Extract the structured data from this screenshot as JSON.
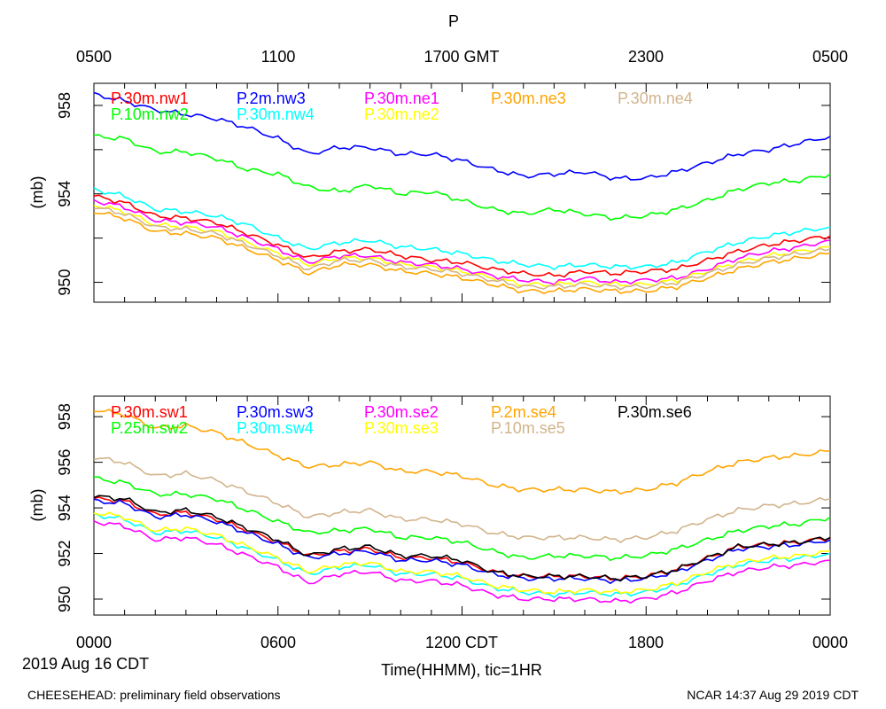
{
  "title": "P",
  "top_axis_labels": [
    "0500",
    "1100",
    "1700 GMT",
    "2300",
    "0500"
  ],
  "bottom_axis_labels": [
    "0000",
    "0600",
    "1200 CDT",
    "1800",
    "0000"
  ],
  "date_label": "2019 Aug 16 CDT",
  "xlabel": "Time(HHMM), tic=1HR",
  "footer_left": "CHEESEHEAD: preliminary field observations",
  "footer_right": "NCAR 14:37 Aug 29 2019 CDT",
  "colors": {
    "red": "#ff0000",
    "blue": "#0000ff",
    "green": "#00ff00",
    "magenta": "#ff00ff",
    "cyan": "#00ffff",
    "orange": "#ffa500",
    "yellow": "#ffff00",
    "tan": "#d2b48c",
    "black": "#000000"
  },
  "chart_data": [
    {
      "type": "line",
      "ylabel": "(mb)",
      "xlim": [
        0,
        24
      ],
      "ylim": [
        949.1,
        959.0
      ],
      "yticks": [
        950,
        952,
        954,
        956,
        958
      ],
      "ytick_labels": [
        "950",
        "954",
        "958"
      ],
      "x": [
        0,
        1,
        2,
        3,
        4,
        5,
        6,
        7,
        8,
        9,
        10,
        11,
        12,
        13,
        14,
        15,
        16,
        17,
        18,
        19,
        20,
        21,
        22,
        23,
        24
      ],
      "series": [
        {
          "name": "P.30m.nw1",
          "color": "red",
          "values": [
            953.9,
            953.6,
            953.0,
            952.9,
            952.7,
            952.2,
            951.7,
            951.1,
            951.4,
            951.5,
            951.2,
            951.0,
            950.9,
            950.6,
            950.4,
            950.3,
            950.5,
            950.4,
            950.5,
            950.6,
            951.0,
            951.4,
            951.7,
            951.9,
            952.1
          ]
        },
        {
          "name": "P.10m.nw2",
          "color": "green",
          "values": [
            956.6,
            956.5,
            955.9,
            955.9,
            955.6,
            955.1,
            954.9,
            954.3,
            954.1,
            954.4,
            954.0,
            954.1,
            953.7,
            953.3,
            953.1,
            953.3,
            953.1,
            952.9,
            953.0,
            953.3,
            953.7,
            954.2,
            954.5,
            954.6,
            954.9
          ]
        },
        {
          "name": "P.2m.nw3",
          "color": "blue",
          "values": [
            958.5,
            958.2,
            957.8,
            957.6,
            957.4,
            957.0,
            956.5,
            955.8,
            956.1,
            956.1,
            955.8,
            955.8,
            955.5,
            955.1,
            954.8,
            954.9,
            955.0,
            954.7,
            954.7,
            955.0,
            955.4,
            955.8,
            956.0,
            956.3,
            956.6
          ]
        },
        {
          "name": "P.30m.nw4",
          "color": "cyan",
          "values": [
            954.2,
            953.9,
            953.3,
            953.2,
            953.0,
            952.6,
            952.0,
            951.5,
            951.8,
            951.9,
            951.6,
            951.5,
            951.3,
            951.0,
            950.8,
            950.7,
            950.8,
            950.7,
            950.7,
            950.9,
            951.4,
            951.8,
            952.1,
            952.3,
            952.5
          ]
        },
        {
          "name": "P.30m.ne1",
          "color": "magenta",
          "values": [
            953.7,
            953.4,
            952.8,
            952.7,
            952.5,
            952.0,
            951.5,
            950.9,
            951.2,
            951.2,
            950.9,
            950.8,
            950.6,
            950.3,
            950.1,
            950.0,
            950.2,
            950.0,
            950.1,
            950.2,
            950.6,
            951.1,
            951.4,
            951.6,
            951.9
          ]
        },
        {
          "name": "P.30m.ne2",
          "color": "yellow",
          "values": [
            953.5,
            953.2,
            952.6,
            952.5,
            952.3,
            951.8,
            951.3,
            950.8,
            951.1,
            951.1,
            950.8,
            950.7,
            950.5,
            950.2,
            949.9,
            949.9,
            950.0,
            949.9,
            949.9,
            950.1,
            950.5,
            950.9,
            951.2,
            951.4,
            951.6
          ]
        },
        {
          "name": "P.30m.ne3",
          "color": "orange",
          "values": [
            953.2,
            952.9,
            952.3,
            952.2,
            952.0,
            951.5,
            951.0,
            950.4,
            950.8,
            950.8,
            950.5,
            950.4,
            950.2,
            949.9,
            949.6,
            949.6,
            949.7,
            949.6,
            949.6,
            949.8,
            950.2,
            950.6,
            950.9,
            951.1,
            951.3
          ]
        },
        {
          "name": "P.30m.ne4",
          "color": "tan",
          "values": [
            953.4,
            953.1,
            952.5,
            952.4,
            952.2,
            951.7,
            951.2,
            950.6,
            951.0,
            951.0,
            950.7,
            950.6,
            950.4,
            950.1,
            949.8,
            949.8,
            949.9,
            949.8,
            949.8,
            950.0,
            950.4,
            950.8,
            951.1,
            951.3,
            951.5
          ]
        }
      ]
    },
    {
      "type": "line",
      "ylabel": "(mb)",
      "xlim": [
        0,
        24
      ],
      "ylim": [
        949.3,
        958.9
      ],
      "yticks": [
        950,
        952,
        954,
        956,
        958
      ],
      "ytick_labels": [
        "950",
        "952",
        "954",
        "956",
        "958"
      ],
      "x": [
        0,
        1,
        2,
        3,
        4,
        5,
        6,
        7,
        8,
        9,
        10,
        11,
        12,
        13,
        14,
        15,
        16,
        17,
        18,
        19,
        20,
        21,
        22,
        23,
        24
      ],
      "series": [
        {
          "name": "P.30m.sw1",
          "color": "red",
          "values": [
            954.4,
            954.3,
            953.7,
            953.8,
            953.5,
            953.0,
            952.5,
            951.9,
            952.1,
            952.2,
            951.8,
            951.8,
            951.6,
            951.2,
            951.0,
            951.0,
            951.0,
            950.9,
            951.0,
            951.3,
            951.8,
            952.3,
            952.4,
            952.5,
            952.7
          ]
        },
        {
          "name": "P.25m.sw2",
          "color": "green",
          "values": [
            955.3,
            955.1,
            954.6,
            954.6,
            954.4,
            953.9,
            953.4,
            952.9,
            953.0,
            953.1,
            952.7,
            952.7,
            952.5,
            952.1,
            951.8,
            951.9,
            951.9,
            951.8,
            951.9,
            952.2,
            952.6,
            953.0,
            953.2,
            953.3,
            953.6
          ]
        },
        {
          "name": "P.30m.sw3",
          "color": "blue",
          "values": [
            954.3,
            954.2,
            953.6,
            953.7,
            953.4,
            952.9,
            952.4,
            951.8,
            952.0,
            952.1,
            951.7,
            951.7,
            951.5,
            951.1,
            950.9,
            950.9,
            950.9,
            950.8,
            950.9,
            951.2,
            951.7,
            952.2,
            952.3,
            952.4,
            952.6
          ]
        },
        {
          "name": "P.30m.sw4",
          "color": "cyan",
          "values": [
            953.7,
            953.5,
            952.9,
            953.0,
            952.7,
            952.2,
            951.7,
            951.1,
            951.4,
            951.5,
            951.1,
            951.1,
            950.9,
            950.5,
            950.3,
            950.2,
            950.3,
            950.2,
            950.3,
            950.6,
            951.1,
            951.5,
            951.7,
            951.8,
            952.0
          ]
        },
        {
          "name": "P.30m.se2",
          "color": "magenta",
          "values": [
            953.4,
            953.2,
            952.6,
            952.7,
            952.4,
            951.9,
            951.4,
            950.7,
            951.1,
            951.2,
            950.8,
            950.8,
            950.6,
            950.2,
            950.0,
            950.0,
            950.0,
            949.9,
            950.0,
            950.3,
            950.8,
            951.2,
            951.4,
            951.5,
            951.7
          ]
        },
        {
          "name": "P.30m.se3",
          "color": "yellow",
          "values": [
            953.8,
            953.6,
            953.0,
            953.1,
            952.8,
            952.3,
            951.8,
            951.2,
            951.5,
            951.6,
            951.2,
            951.2,
            951.0,
            950.6,
            950.4,
            950.3,
            950.4,
            950.3,
            950.4,
            950.7,
            951.2,
            951.6,
            951.8,
            951.9,
            952.1
          ]
        },
        {
          "name": "P.2m.se4",
          "color": "orange",
          "values": [
            958.3,
            958.1,
            957.5,
            957.6,
            957.3,
            956.8,
            956.3,
            955.8,
            955.9,
            956.0,
            955.6,
            955.6,
            955.4,
            955.0,
            954.8,
            954.8,
            954.8,
            954.7,
            954.8,
            955.1,
            955.6,
            956.0,
            956.2,
            956.3,
            956.5
          ]
        },
        {
          "name": "P.10m.se5",
          "color": "tan",
          "values": [
            956.2,
            956.0,
            955.4,
            955.5,
            955.2,
            954.7,
            954.2,
            953.6,
            953.8,
            953.9,
            953.5,
            953.5,
            953.3,
            952.9,
            952.7,
            952.7,
            952.7,
            952.6,
            952.7,
            953.0,
            953.5,
            953.9,
            954.1,
            954.2,
            954.4
          ]
        },
        {
          "name": "P.30m.se6",
          "color": "black",
          "values": [
            954.5,
            954.4,
            953.8,
            953.9,
            953.6,
            953.1,
            952.6,
            951.9,
            952.2,
            952.3,
            951.9,
            951.9,
            951.7,
            951.2,
            951.0,
            951.0,
            951.0,
            950.9,
            951.0,
            951.3,
            951.8,
            952.3,
            952.4,
            952.5,
            952.7
          ]
        }
      ]
    }
  ]
}
